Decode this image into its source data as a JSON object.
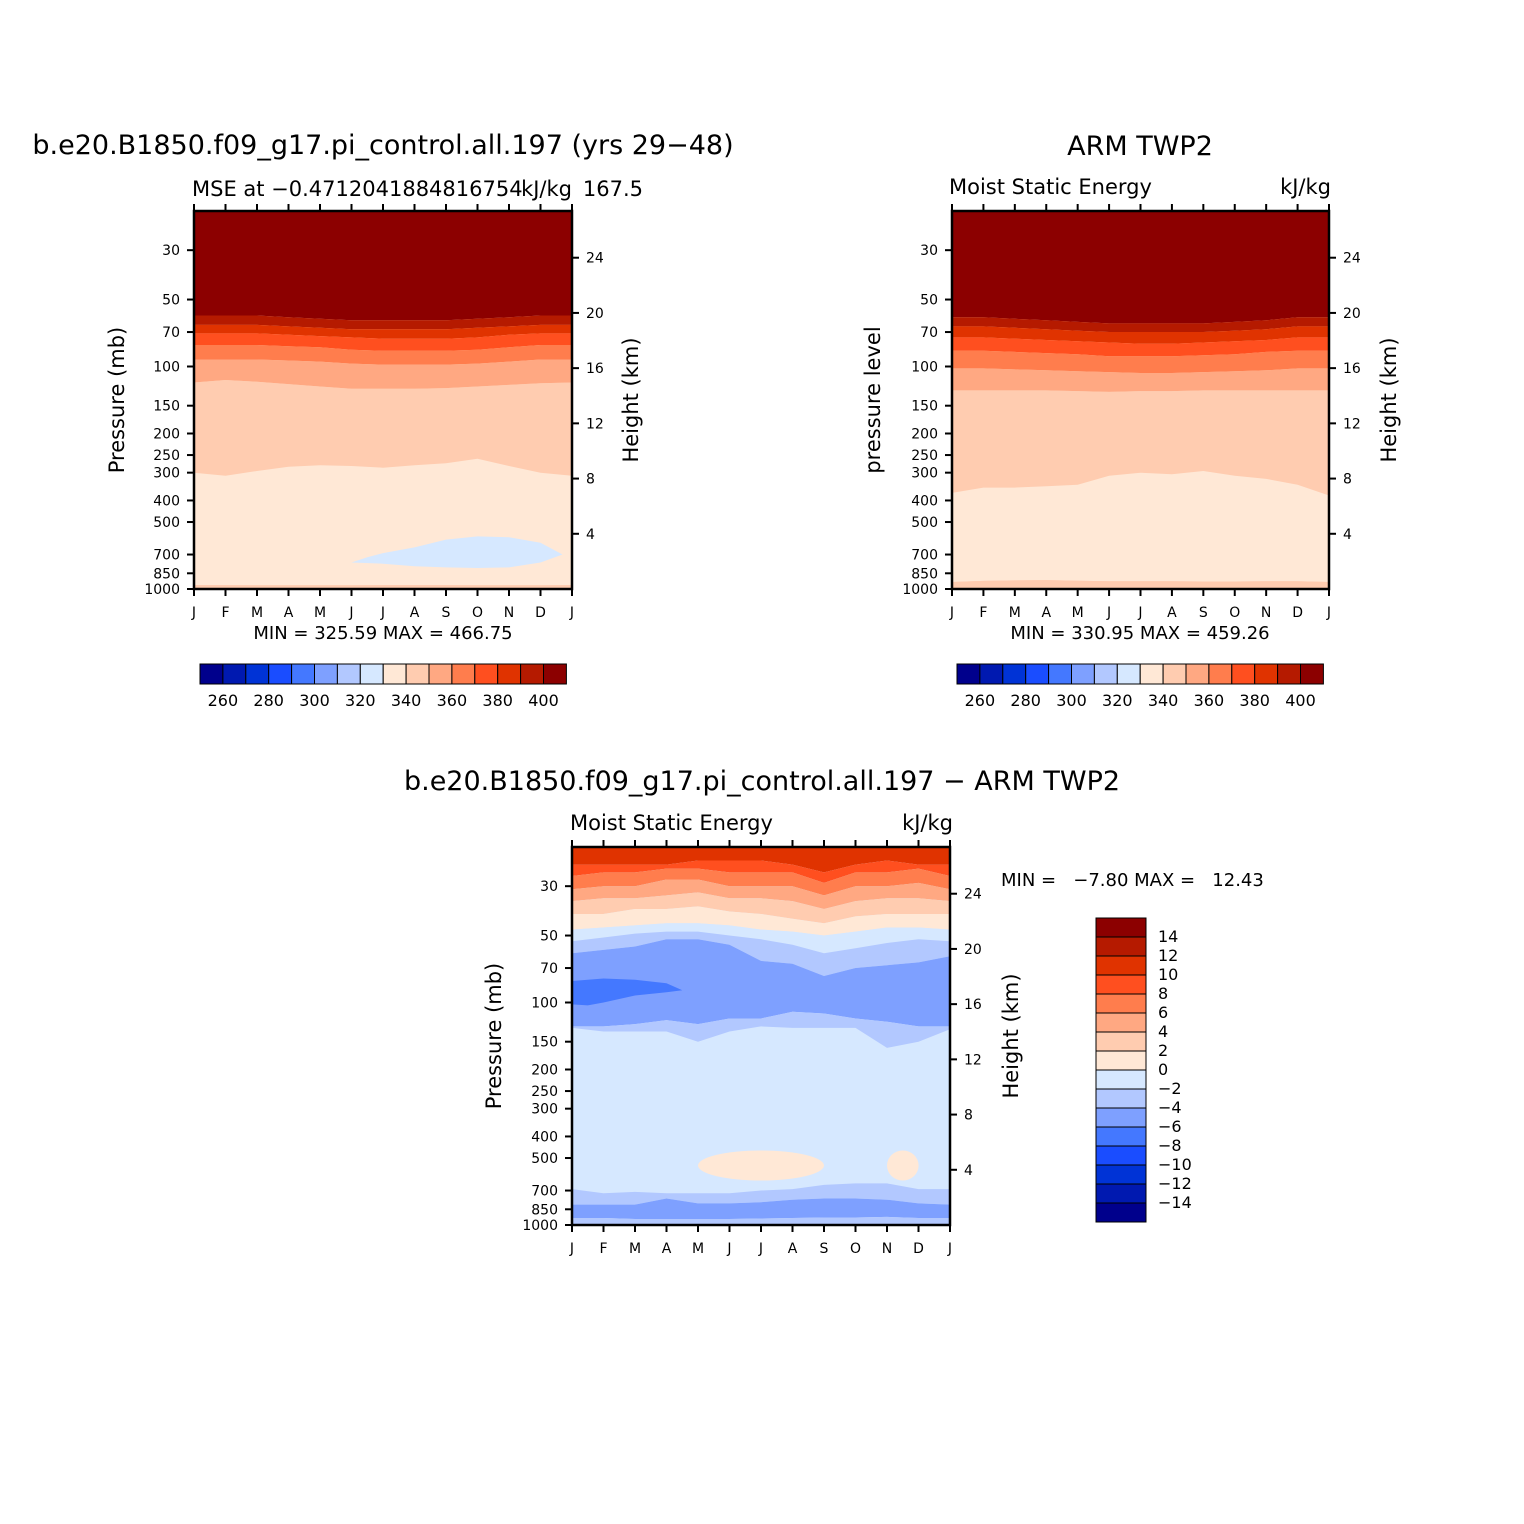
{
  "panels": {
    "model": {
      "title": "b.e20.B1850.f09_g17.pi_control.all.197 (yrs 29−48)",
      "left_string": "MSE at −0.4712041884816754",
      "right_string": "kJ/kg",
      "right_string_2": "167.5",
      "stats": "MIN = 325.59 MAX = 466.75",
      "ylabel_left": "Pressure (mb)",
      "ylabel_right": "Height (km)"
    },
    "obs": {
      "title": "ARM TWP2",
      "left_string": "Moist Static Energy",
      "right_string": "kJ/kg",
      "stats": "MIN = 330.95 MAX = 459.26",
      "ylabel_left": "pressure level",
      "ylabel_right": "Height (km)"
    },
    "diff": {
      "title": "b.e20.B1850.f09_g17.pi_control.all.197 − ARM TWP2",
      "left_string": "Moist Static Energy",
      "right_string": "kJ/kg",
      "stats": "MIN =   −7.80 MAX =   12.43",
      "ylabel_left": "Pressure (mb)",
      "ylabel_right": "Height (km)"
    }
  },
  "chart_data": [
    {
      "type": "heatmap",
      "panel": "model",
      "title": "b.e20.B1850.f09_g17.pi_control.all.197 (yrs 29−48)",
      "x_categories": [
        "J",
        "F",
        "M",
        "A",
        "M",
        "J",
        "J",
        "A",
        "S",
        "O",
        "N",
        "D",
        "J"
      ],
      "y_pressure_ticks": [
        30,
        50,
        70,
        100,
        150,
        200,
        250,
        300,
        400,
        500,
        700,
        850,
        1000
      ],
      "y_height_ticks_km": [
        24,
        20,
        16,
        12,
        8,
        4
      ],
      "ylim_mb": [
        1000,
        20
      ],
      "y_scale": "log-pressure",
      "contour_levels": [
        250,
        260,
        270,
        280,
        290,
        300,
        310,
        320,
        330,
        340,
        350,
        360,
        370,
        380,
        390,
        400
      ],
      "colorbar_labels": [
        "260",
        "280",
        "300",
        "320",
        "340",
        "360",
        "380",
        "400"
      ],
      "min": 325.59,
      "max": 466.75,
      "boundaries_mb": {
        "400": [
          59,
          59,
          59,
          60,
          61,
          62,
          62,
          62,
          62,
          61,
          60,
          59,
          59
        ],
        "390": [
          65,
          65,
          65,
          66,
          67,
          68,
          68,
          68,
          68,
          67,
          66,
          65,
          65
        ],
        "380": [
          71,
          71,
          71,
          72,
          73,
          74,
          75,
          75,
          75,
          74,
          72,
          71,
          71
        ],
        "370": [
          80,
          80,
          80,
          81,
          82,
          84,
          85,
          85,
          85,
          84,
          82,
          80,
          80
        ],
        "360": [
          93,
          93,
          93,
          94,
          95,
          97,
          98,
          98,
          98,
          97,
          95,
          93,
          93
        ],
        "350": [
          118,
          115,
          117,
          120,
          123,
          126,
          126,
          126,
          125,
          123,
          121,
          119,
          118
        ],
        "340": [
          300,
          310,
          295,
          282,
          278,
          280,
          285,
          278,
          272,
          260,
          280,
          300,
          310
        ],
        "320_blob": {
          "x": [
            5.0,
            5.5,
            6.0,
            7.0,
            8.0,
            9.0,
            10.0,
            11.0,
            11.7,
            11.0,
            10.0,
            9.0,
            8.0,
            7.0,
            6.0,
            5.0
          ],
          "p": [
            760,
            720,
            690,
            650,
            600,
            580,
            585,
            620,
            700,
            760,
            800,
            805,
            800,
            790,
            770,
            760
          ]
        },
        "330_near_surface": [
          960,
          960,
          962,
          962,
          962,
          962,
          960,
          960,
          960,
          962,
          962,
          962,
          960
        ]
      }
    },
    {
      "type": "heatmap",
      "panel": "obs",
      "title": "ARM TWP2",
      "x_categories": [
        "J",
        "F",
        "M",
        "A",
        "M",
        "J",
        "J",
        "A",
        "S",
        "O",
        "N",
        "D",
        "J"
      ],
      "y_pressure_ticks": [
        30,
        50,
        70,
        100,
        150,
        200,
        250,
        300,
        400,
        500,
        700,
        850,
        1000
      ],
      "y_height_ticks_km": [
        24,
        20,
        16,
        12,
        8,
        4
      ],
      "ylim_mb": [
        1000,
        20
      ],
      "y_scale": "log-pressure",
      "contour_levels": [
        250,
        260,
        270,
        280,
        290,
        300,
        310,
        320,
        330,
        340,
        350,
        360,
        370,
        380,
        390,
        400
      ],
      "colorbar_labels": [
        "260",
        "280",
        "300",
        "320",
        "340",
        "360",
        "380",
        "400"
      ],
      "min": 330.95,
      "max": 459.26,
      "boundaries_mb": {
        "400": [
          60,
          60,
          61,
          62,
          63,
          64,
          64,
          64,
          64,
          63,
          62,
          60,
          60
        ],
        "390": [
          66,
          66,
          67,
          68,
          69,
          70,
          70,
          70,
          70,
          69,
          68,
          66,
          66
        ],
        "380": [
          74,
          74,
          75,
          76,
          77,
          78,
          79,
          79,
          78,
          77,
          76,
          74,
          74
        ],
        "370": [
          85,
          85,
          86,
          87,
          88,
          90,
          90,
          90,
          89,
          88,
          86,
          85,
          85
        ],
        "360": [
          102,
          102,
          103,
          104,
          105,
          106,
          107,
          107,
          106,
          105,
          104,
          102,
          102
        ],
        "350": [
          128,
          128,
          128,
          128,
          129,
          130,
          129,
          129,
          128,
          128,
          128,
          128,
          128
        ],
        "340": [
          370,
          350,
          350,
          345,
          340,
          310,
          300,
          305,
          295,
          310,
          320,
          340,
          380
        ],
        "330_near_surface": [
          930,
          920,
          915,
          912,
          918,
          922,
          922,
          922,
          925,
          925,
          922,
          922,
          930
        ]
      }
    },
    {
      "type": "heatmap",
      "panel": "diff",
      "title": "b.e20.B1850.f09_g17.pi_control.all.197 − ARM TWP2",
      "x_categories": [
        "J",
        "F",
        "M",
        "A",
        "M",
        "J",
        "J",
        "A",
        "S",
        "O",
        "N",
        "D",
        "J"
      ],
      "y_pressure_ticks": [
        30,
        50,
        70,
        100,
        150,
        200,
        250,
        300,
        400,
        500,
        700,
        850,
        1000
      ],
      "y_height_ticks_km": [
        24,
        20,
        16,
        12,
        8,
        4
      ],
      "ylim_mb": [
        1000,
        20
      ],
      "y_scale": "log-pressure",
      "contour_levels": [
        -14,
        -12,
        -10,
        -8,
        -6,
        -4,
        -2,
        0,
        2,
        4,
        6,
        8,
        10,
        12,
        14
      ],
      "colorbar_labels": [
        "14",
        "12",
        "10",
        "8",
        "6",
        "4",
        "2",
        "0",
        "−2",
        "−4",
        "−6",
        "−8",
        "−10",
        "−12",
        "−14"
      ],
      "min": -7.8,
      "max": 12.43,
      "field_description": {
        "top_warm_layer_mb": [
          20,
          50
        ],
        "warm_max_positions": [
          "S",
          "N",
          "D"
        ],
        "cool_band_mb": [
          55,
          130
        ],
        "strongest_cool_band": {
          "x_range": [
            "J",
            "M"
          ],
          "p_range_mb": [
            78,
            102
          ],
          "level": -6
        },
        "midtrop_neutral_mb": [
          130,
          700
        ],
        "warm_patches_500mb": [
          {
            "x_range": [
              "M",
              "S"
            ],
            "p_mb": 540
          },
          {
            "x_range": [
              "N",
              "D"
            ],
            "p_mb": 540
          }
        ],
        "low_level_cool_band_mb": [
          760,
          940
        ]
      },
      "boundaries_mb": {
        "10": [
          24,
          24,
          24,
          24,
          23,
          23,
          23,
          24,
          26,
          24,
          23,
          24,
          24
        ],
        "8": [
          27,
          26,
          26,
          25,
          25,
          26,
          26,
          26,
          29,
          26,
          26,
          25,
          27
        ],
        "6": [
          31,
          30,
          30,
          28,
          28,
          30,
          30,
          30,
          33,
          30,
          30,
          29,
          31
        ],
        "4": [
          35,
          34,
          34,
          33,
          32,
          34,
          34,
          35,
          38,
          35,
          34,
          34,
          35
        ],
        "2": [
          40,
          40,
          38,
          38,
          37,
          39,
          40,
          42,
          44,
          41,
          40,
          40,
          40
        ],
        "0": [
          47,
          46,
          45,
          44,
          44,
          45,
          47,
          48,
          50,
          48,
          46,
          46,
          47
        ],
        "-2": [
          53,
          51,
          49,
          48,
          48,
          50,
          52,
          55,
          60,
          57,
          54,
          52,
          53
        ],
        "-4": [
          60,
          58,
          56,
          52,
          52,
          55,
          65,
          67,
          76,
          70,
          68,
          66,
          62
        ],
        "-6_bottom": [
          128,
          128,
          125,
          120,
          125,
          118,
          118,
          110,
          112,
          118,
          122,
          128,
          128
        ],
        "-4_bottom": [
          130,
          135,
          135,
          135,
          150,
          135,
          128,
          130,
          130,
          130,
          160,
          150,
          132
        ],
        "-2_top_low": [
          690,
          720,
          710,
          720,
          720,
          720,
          700,
          690,
          660,
          650,
          650,
          690,
          690
        ],
        "-4_top_low": [
          810,
          810,
          810,
          760,
          800,
          800,
          790,
          770,
          760,
          760,
          770,
          800,
          810
        ],
        "-4_bottom_low": [
          930,
          930,
          940,
          940,
          940,
          940,
          935,
          930,
          925,
          925,
          920,
          930,
          930
        ]
      }
    }
  ]
}
